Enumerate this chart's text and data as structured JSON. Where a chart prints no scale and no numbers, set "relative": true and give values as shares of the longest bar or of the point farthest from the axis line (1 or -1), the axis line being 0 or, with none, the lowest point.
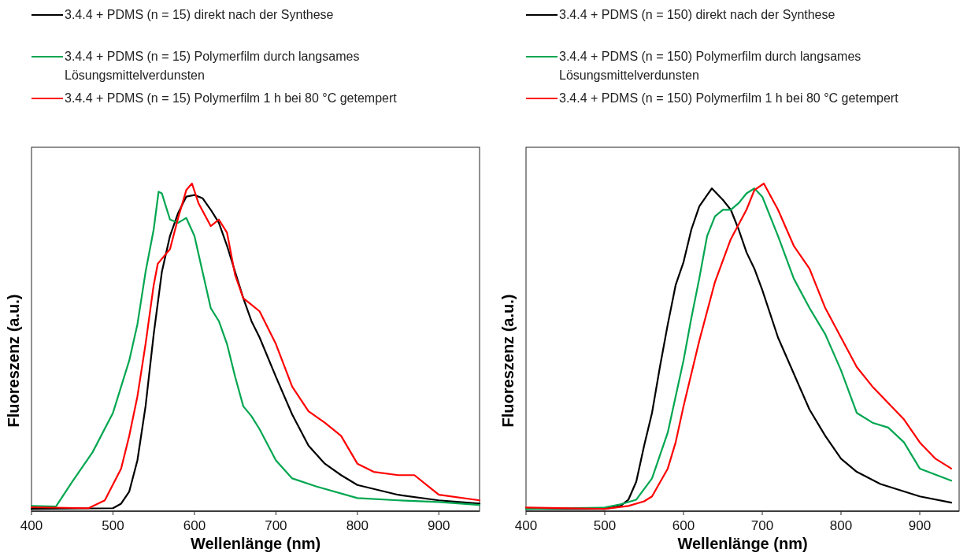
{
  "chart_data": [
    {
      "type": "line",
      "xlabel": "Wellenlänge (nm)",
      "ylabel": "Fluoreszenz (a.u.)",
      "relative": true,
      "xlim": [
        400,
        950
      ],
      "xticks": [
        400,
        500,
        600,
        700,
        800,
        900
      ],
      "grid": false,
      "legend": "top left",
      "marker": "none",
      "line_style": "solid",
      "series": [
        {
          "name": "3.4.4 + PDMS (n = 15) direkt nach der Synthese",
          "color": "#000000",
          "x": [
            400,
            500,
            510,
            520,
            530,
            540,
            550,
            560,
            570,
            580,
            590,
            600,
            610,
            620,
            630,
            640,
            650,
            660,
            670,
            680,
            700,
            720,
            740,
            760,
            780,
            800,
            850,
            900,
            950
          ],
          "values": [
            0.007,
            0.009,
            0.023,
            0.06,
            0.155,
            0.32,
            0.54,
            0.73,
            0.84,
            0.91,
            0.96,
            0.965,
            0.955,
            0.92,
            0.88,
            0.81,
            0.73,
            0.65,
            0.58,
            0.53,
            0.41,
            0.295,
            0.2,
            0.145,
            0.11,
            0.08,
            0.05,
            0.033,
            0.023
          ]
        },
        {
          "name": "3.4.4 + PDMS (n = 15) Polymerfilm durch langsames Lösungsmittelverdunsten",
          "color": "#00a650",
          "x": [
            400,
            430,
            450,
            475,
            500,
            520,
            530,
            540,
            550,
            556,
            560,
            570,
            580,
            590,
            600,
            610,
            620,
            630,
            640,
            650,
            660,
            670,
            680,
            700,
            720,
            750,
            800,
            850,
            900,
            950
          ],
          "values": [
            0.016,
            0.014,
            0.09,
            0.18,
            0.3,
            0.46,
            0.57,
            0.73,
            0.86,
            0.975,
            0.97,
            0.89,
            0.88,
            0.895,
            0.84,
            0.73,
            0.62,
            0.58,
            0.51,
            0.41,
            0.32,
            0.29,
            0.25,
            0.155,
            0.1,
            0.075,
            0.04,
            0.033,
            0.028,
            0.019
          ]
        },
        {
          "name": "3.4.4 + PDMS (n = 15) Polymerfilm 1 h bei 80 °C getempert",
          "color": "#ff0000",
          "x": [
            400,
            470,
            490,
            510,
            520,
            530,
            540,
            550,
            555,
            570,
            580,
            590,
            597,
            605,
            620,
            630,
            640,
            650,
            660,
            670,
            680,
            700,
            720,
            740,
            760,
            780,
            800,
            820,
            850,
            870,
            890,
            900,
            950
          ],
          "values": [
            0.012,
            0.009,
            0.033,
            0.13,
            0.23,
            0.35,
            0.51,
            0.69,
            0.755,
            0.8,
            0.895,
            0.98,
            1.0,
            0.94,
            0.87,
            0.89,
            0.85,
            0.72,
            0.65,
            0.63,
            0.61,
            0.51,
            0.38,
            0.305,
            0.27,
            0.23,
            0.145,
            0.12,
            0.11,
            0.11,
            0.07,
            0.05,
            0.033
          ]
        }
      ]
    },
    {
      "type": "line",
      "xlabel": "Wellenlänge (nm)",
      "ylabel": "Fluoreszenz (a.u.)",
      "relative": true,
      "xlim": [
        400,
        950
      ],
      "xticks": [
        400,
        500,
        600,
        700,
        800,
        900
      ],
      "grid": false,
      "legend": "top left",
      "marker": "none",
      "line_style": "solid",
      "series": [
        {
          "name": "3.4.4 + PDMS (n = 150) direkt nach der Synthese",
          "color": "#000000",
          "x": [
            400,
            500,
            520,
            530,
            540,
            550,
            560,
            570,
            580,
            590,
            600,
            610,
            620,
            630,
            636,
            650,
            660,
            670,
            680,
            690,
            700,
            720,
            740,
            760,
            780,
            800,
            820,
            850,
            900,
            940
          ],
          "values": [
            0.007,
            0.007,
            0.016,
            0.035,
            0.09,
            0.2,
            0.3,
            0.44,
            0.57,
            0.69,
            0.76,
            0.86,
            0.93,
            0.965,
            0.985,
            0.95,
            0.92,
            0.86,
            0.79,
            0.74,
            0.675,
            0.53,
            0.42,
            0.31,
            0.23,
            0.16,
            0.12,
            0.083,
            0.045,
            0.026
          ]
        },
        {
          "name": "3.4.4 + PDMS (n = 150) Polymerfilm durch langsames Lösungsmittelverdunsten",
          "color": "#00a650",
          "x": [
            400,
            500,
            520,
            540,
            560,
            580,
            600,
            610,
            620,
            630,
            640,
            650,
            660,
            670,
            680,
            690,
            700,
            720,
            740,
            760,
            780,
            800,
            820,
            840,
            860,
            880,
            900,
            940
          ],
          "values": [
            0.007,
            0.011,
            0.021,
            0.035,
            0.1,
            0.24,
            0.46,
            0.59,
            0.71,
            0.84,
            0.9,
            0.92,
            0.92,
            0.94,
            0.97,
            0.985,
            0.96,
            0.84,
            0.71,
            0.62,
            0.54,
            0.43,
            0.3,
            0.27,
            0.255,
            0.21,
            0.13,
            0.093
          ]
        },
        {
          "name": "3.4.4 + PDMS (n = 150) Polymerfilm 1 h bei 80 °C getempert",
          "color": "#ff0000",
          "x": [
            400,
            500,
            530,
            550,
            560,
            580,
            590,
            600,
            620,
            640,
            660,
            680,
            690,
            702,
            720,
            740,
            760,
            780,
            800,
            820,
            840,
            860,
            880,
            900,
            920,
            940
          ],
          "values": [
            0.011,
            0.007,
            0.016,
            0.03,
            0.045,
            0.13,
            0.21,
            0.32,
            0.52,
            0.7,
            0.83,
            0.92,
            0.98,
            1.0,
            0.92,
            0.81,
            0.74,
            0.62,
            0.53,
            0.44,
            0.38,
            0.33,
            0.28,
            0.21,
            0.16,
            0.13
          ]
        }
      ]
    }
  ]
}
